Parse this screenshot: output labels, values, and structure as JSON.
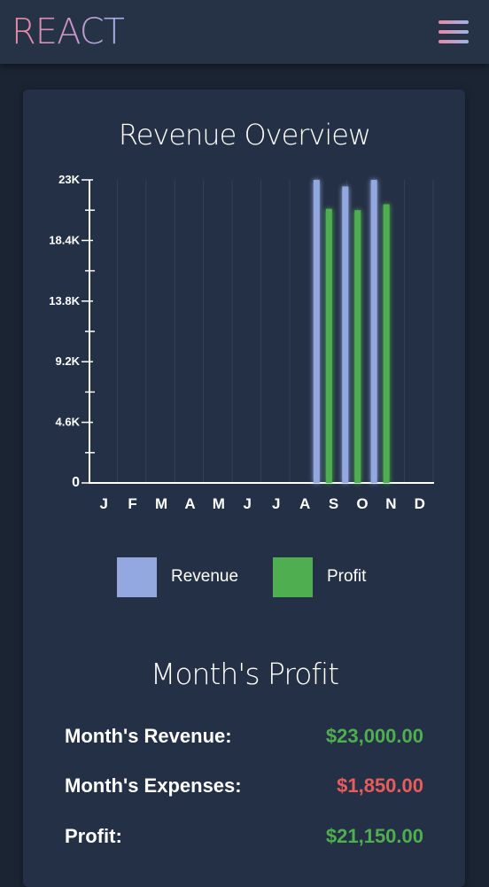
{
  "header": {
    "brand": "REACT",
    "menu_icon": "hamburger-menu-icon"
  },
  "colors": {
    "revenue": "#94a8e0",
    "profit": "#4fae4f",
    "expense": "#e85c5c",
    "background": "#1b2433",
    "card": "#243045"
  },
  "chart": {
    "title": "Revenue Overview"
  },
  "chart_data": {
    "type": "bar",
    "title": "Revenue Overview",
    "categories": [
      "J",
      "F",
      "M",
      "A",
      "M",
      "J",
      "J",
      "A",
      "S",
      "O",
      "N",
      "D"
    ],
    "series": [
      {
        "name": "Revenue",
        "values": [
          0,
          0,
          0,
          0,
          0,
          0,
          0,
          23000,
          22500,
          23000,
          0,
          0
        ]
      },
      {
        "name": "Profit",
        "values": [
          0,
          0,
          0,
          0,
          0,
          0,
          0,
          20800,
          20700,
          21150,
          0,
          0
        ]
      }
    ],
    "yticks": [
      0,
      4600,
      9200,
      13800,
      18400,
      23000
    ],
    "ytick_labels": [
      "0",
      "4.6K",
      "9.2K",
      "13.8K",
      "18.4K",
      "23K"
    ],
    "ylim": [
      0,
      23000
    ],
    "xlabel": "",
    "ylabel": "",
    "grid": true,
    "legend": "bottom"
  },
  "legend": [
    {
      "label": "Revenue"
    },
    {
      "label": "Profit"
    }
  ],
  "summary": {
    "title": "Month's Profit",
    "rows": [
      {
        "label": "Month's Revenue:",
        "value": "$23,000.00"
      },
      {
        "label": "Month's Expenses:",
        "value": "$1,850.00"
      },
      {
        "label": "Profit:",
        "value": "$21,150.00"
      }
    ]
  }
}
